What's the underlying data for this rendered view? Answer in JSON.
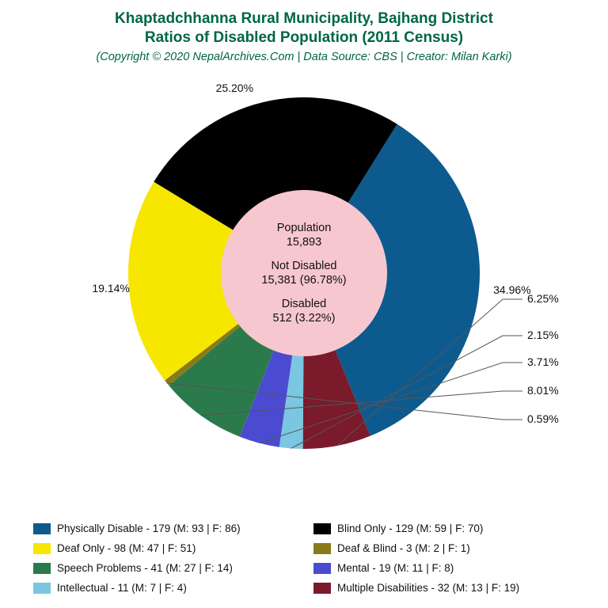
{
  "title": {
    "line1": "Khaptadchhanna Rural Municipality, Bajhang District",
    "line2": "Ratios of Disabled Population (2011 Census)",
    "subtitle": "(Copyright © 2020 NepalArchives.Com | Data Source: CBS | Creator: Milan Karki)",
    "color": "#006644",
    "title_fontsize": 19,
    "subtitle_fontsize": 14.5
  },
  "chart": {
    "type": "pie",
    "outer_radius": 222,
    "inner_radius": 105,
    "center_bg": "#f7c7d0",
    "background": "#ffffff",
    "start_angle_deg": 302,
    "label_fontsize": 14,
    "leader_color": "#555555",
    "slices": [
      {
        "name": "Physically Disable",
        "value": 179,
        "pct": "34.96%",
        "color": "#0d5a8f",
        "male": 93,
        "female": 86,
        "label_pos": "arc"
      },
      {
        "name": "Multiple Disabilities",
        "value": 32,
        "pct": "6.25%",
        "color": "#7b1a2b",
        "male": 13,
        "female": 19,
        "label_pos": "right"
      },
      {
        "name": "Intellectual",
        "value": 11,
        "pct": "2.15%",
        "color": "#7bc6e0",
        "male": 7,
        "female": 4,
        "label_pos": "right"
      },
      {
        "name": "Mental",
        "value": 19,
        "pct": "3.71%",
        "color": "#4b4bd1",
        "male": 11,
        "female": 8,
        "label_pos": "right"
      },
      {
        "name": "Speech Problems",
        "value": 41,
        "pct": "8.01%",
        "color": "#2b7a4b",
        "male": 27,
        "female": 14,
        "label_pos": "right"
      },
      {
        "name": "Deaf & Blind",
        "value": 3,
        "pct": "0.59%",
        "color": "#8a7a1a",
        "male": 2,
        "female": 1,
        "label_pos": "right"
      },
      {
        "name": "Deaf Only",
        "value": 98,
        "pct": "19.14%",
        "color": "#f7e600",
        "male": 47,
        "female": 51,
        "label_pos": "bottom"
      },
      {
        "name": "Blind Only",
        "value": 129,
        "pct": "25.20%",
        "color": "#000000",
        "male": 59,
        "female": 70,
        "label_pos": "arc"
      }
    ],
    "center_text": {
      "pop_label": "Population",
      "pop_value": "15,893",
      "not_label": "Not Disabled",
      "not_value": "15,381 (96.78%)",
      "dis_label": "Disabled",
      "dis_value": "512 (3.22%)"
    }
  },
  "legend": {
    "swatch_w": 22,
    "swatch_h": 14,
    "fontsize": 13.5,
    "items": [
      {
        "text": "Physically Disable - 179 (M: 93 | F: 86)",
        "color": "#0d5a8f"
      },
      {
        "text": "Blind Only - 129 (M: 59 | F: 70)",
        "color": "#000000"
      },
      {
        "text": "Deaf Only - 98 (M: 47 | F: 51)",
        "color": "#f7e600"
      },
      {
        "text": "Deaf & Blind - 3 (M: 2 | F: 1)",
        "color": "#8a7a1a"
      },
      {
        "text": "Speech Problems - 41 (M: 27 | F: 14)",
        "color": "#2b7a4b"
      },
      {
        "text": "Mental - 19 (M: 11 | F: 8)",
        "color": "#4b4bd1"
      },
      {
        "text": "Intellectual - 11 (M: 7 | F: 4)",
        "color": "#7bc6e0"
      },
      {
        "text": "Multiple Disabilities - 32 (M: 13 | F: 19)",
        "color": "#7b1a2b"
      }
    ]
  }
}
